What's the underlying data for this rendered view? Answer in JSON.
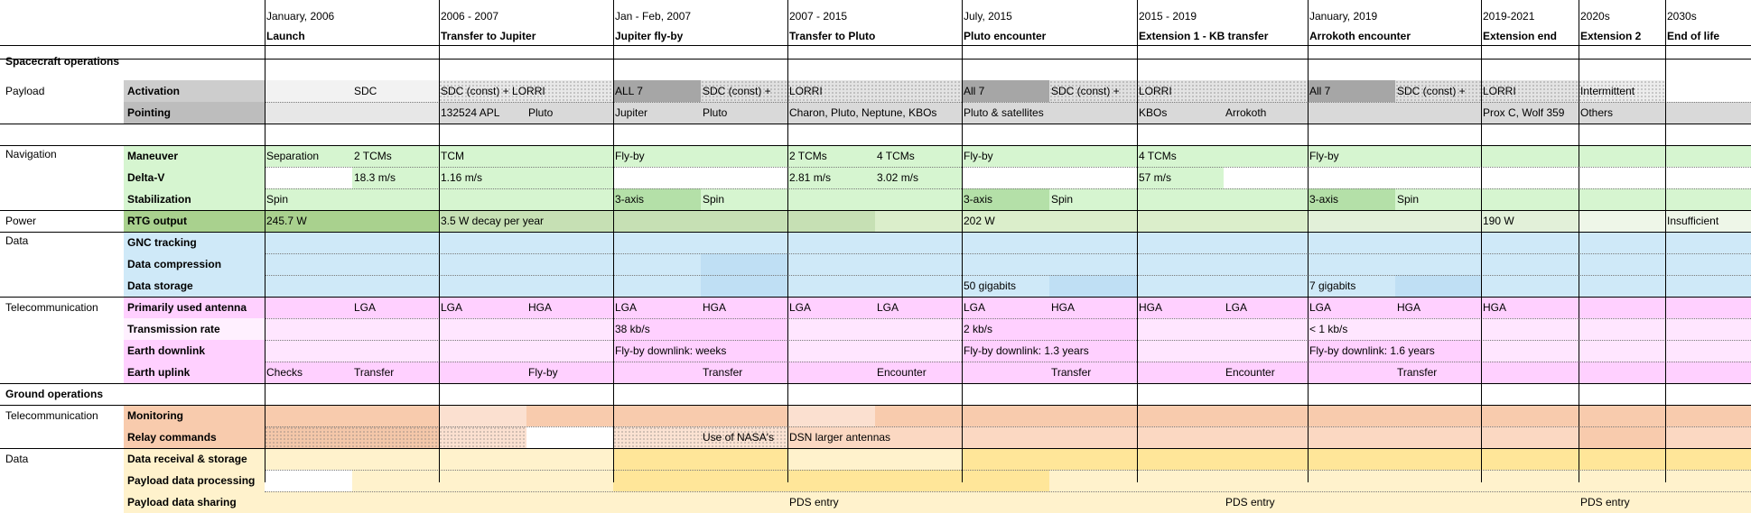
{
  "phases": [
    {
      "date": "January, 2006",
      "name": "Launch"
    },
    {
      "date": "2006 - 2007",
      "name": "Transfer to Jupiter"
    },
    {
      "date": "Jan - Feb, 2007",
      "name": "Jupiter fly-by"
    },
    {
      "date": "2007 - 2015",
      "name": "Transfer to Pluto"
    },
    {
      "date": "July, 2015",
      "name": "Pluto encounter"
    },
    {
      "date": "2015 - 2019",
      "name": "Extension 1 - KB transfer"
    },
    {
      "date": "January, 2019",
      "name": "Arrokoth encounter"
    },
    {
      "date": "2019-2021",
      "name": "Extension end"
    },
    {
      "date": "2020s",
      "name": "Extension 2"
    },
    {
      "date": "2030s",
      "name": "End of life"
    }
  ],
  "sections": {
    "spacecraft": "Spacecraft operations",
    "ground": "Ground operations"
  },
  "groups": [
    "Payload",
    "Navigation",
    "Power",
    "Data",
    "Telecommunication",
    "Telecommunication",
    "Data"
  ],
  "rows": [
    "Activation",
    "Pointing",
    "Maneuver",
    "Delta-V",
    "Stabilization",
    "RTG output",
    "GNC tracking",
    "Data compression",
    "Data storage",
    "Primarily used antenna",
    "Transmission rate",
    "Earth downlink",
    "Earth uplink",
    "Monitoring",
    "Relay commands",
    "Data receival & storage",
    "Payload data processing",
    "Payload data sharing"
  ],
  "cells": {
    "activation": [
      "SDC",
      "SDC (const) + LORRI",
      "ALL 7",
      "SDC (const) +",
      "LORRI",
      "All 7",
      "SDC (const) +",
      "LORRI",
      "All 7",
      "SDC (const) +",
      "LORRI",
      "Intermittent"
    ],
    "pointing": [
      "132524 APL",
      "Pluto",
      "Jupiter",
      "Pluto",
      "Charon, Pluto, Neptune, KBOs",
      "Pluto & satellites",
      "KBOs",
      "Arrokoth",
      "Prox C, Wolf 359",
      "Others"
    ],
    "maneuver": [
      "Separation",
      "2 TCMs",
      "TCM",
      "Fly-by",
      "2 TCMs",
      "4 TCMs",
      "Fly-by",
      "4 TCMs",
      "Fly-by"
    ],
    "deltav": [
      "18.3 m/s",
      "1.16 m/s",
      "2.81 m/s",
      "3.02 m/s",
      "57 m/s"
    ],
    "stabilization": [
      "Spin",
      "3-axis",
      "Spin",
      "3-axis",
      "Spin",
      "3-axis",
      "Spin"
    ],
    "rtg": [
      "245.7 W",
      "3.5 W decay per year",
      "202 W",
      "190 W",
      "Insufficient"
    ],
    "storage": [
      "50 gigabits",
      "7 gigabits"
    ],
    "antenna": [
      "LGA",
      "LGA",
      "HGA",
      "LGA",
      "HGA",
      "LGA",
      "LGA",
      "LGA",
      "HGA",
      "HGA",
      "LGA",
      "LGA",
      "HGA",
      "HGA"
    ],
    "rate": [
      "38 kb/s",
      "2 kb/s",
      "< 1 kb/s"
    ],
    "downlink": [
      "Fly-by downlink: weeks",
      "Fly-by downlink: 1.3 years",
      "Fly-by downlink: 1.6 years"
    ],
    "uplink": [
      "Checks",
      "Transfer",
      "Fly-by",
      "Transfer",
      "Encounter",
      "Transfer",
      "Encounter",
      "Transfer"
    ],
    "relay": [
      "Use of NASA's",
      "DSN larger antennas"
    ],
    "sharing": [
      "PDS entry",
      "PDS entry",
      "PDS entry"
    ]
  },
  "colors": {
    "gray": "#c9c9c9",
    "green": "#d6f5d0",
    "pink": "#ffd0ff",
    "blue": "#cfe9f8",
    "orange": "#f8cbad",
    "yellow": "#fff2cc",
    "rtg": "#a9d18e"
  }
}
